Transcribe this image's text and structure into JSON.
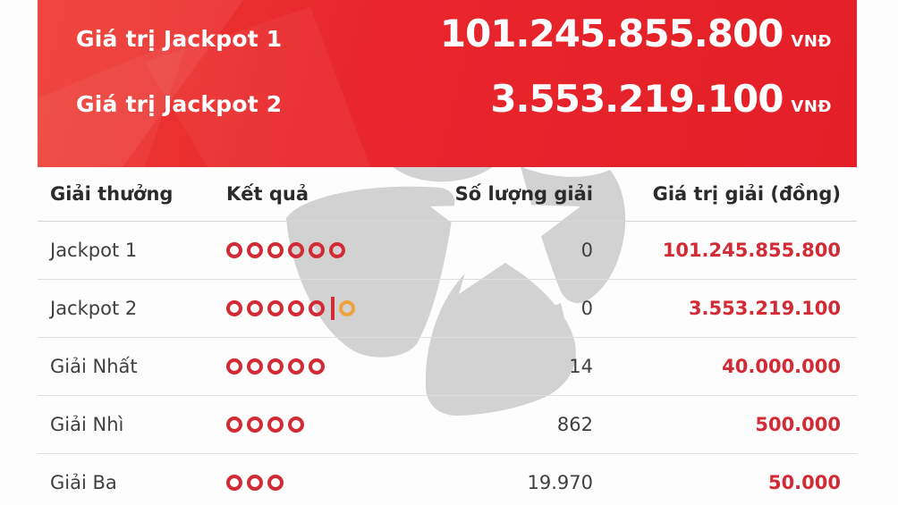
{
  "banner": {
    "items": [
      {
        "label": "Giá trị Jackpot 1",
        "value": "101.245.855.800",
        "currency": "VNĐ"
      },
      {
        "label": "Giá trị Jackpot 2",
        "value": "3.553.219.100",
        "currency": "VNĐ"
      }
    ]
  },
  "table": {
    "headers": {
      "prize": "Giải thưởng",
      "result": "Kết quả",
      "count": "Số lượng giải",
      "value": "Giá trị giải (đồng)"
    },
    "rows": [
      {
        "prize": "Jackpot 1",
        "circles": 6,
        "extra": false,
        "count": "0",
        "value": "101.245.855.800"
      },
      {
        "prize": "Jackpot 2",
        "circles": 5,
        "extra": true,
        "count": "0",
        "value": "3.553.219.100"
      },
      {
        "prize": "Giải Nhất",
        "circles": 5,
        "extra": false,
        "count": "14",
        "value": "40.000.000"
      },
      {
        "prize": "Giải Nhì",
        "circles": 4,
        "extra": false,
        "count": "862",
        "value": "500.000"
      },
      {
        "prize": "Giải Ba",
        "circles": 3,
        "extra": false,
        "count": "19.970",
        "value": "50.000"
      }
    ]
  },
  "icons": {
    "watermark": "vietlott-flower-star-watermark",
    "result_circle": "masked-number-ring",
    "result_divider": "jackpot2-extra-number-divider"
  },
  "colors": {
    "banner_red": "#e41f27",
    "accent_red": "#d22b35",
    "orange": "#efa340",
    "watermark_gray": "#d2d2d2"
  }
}
